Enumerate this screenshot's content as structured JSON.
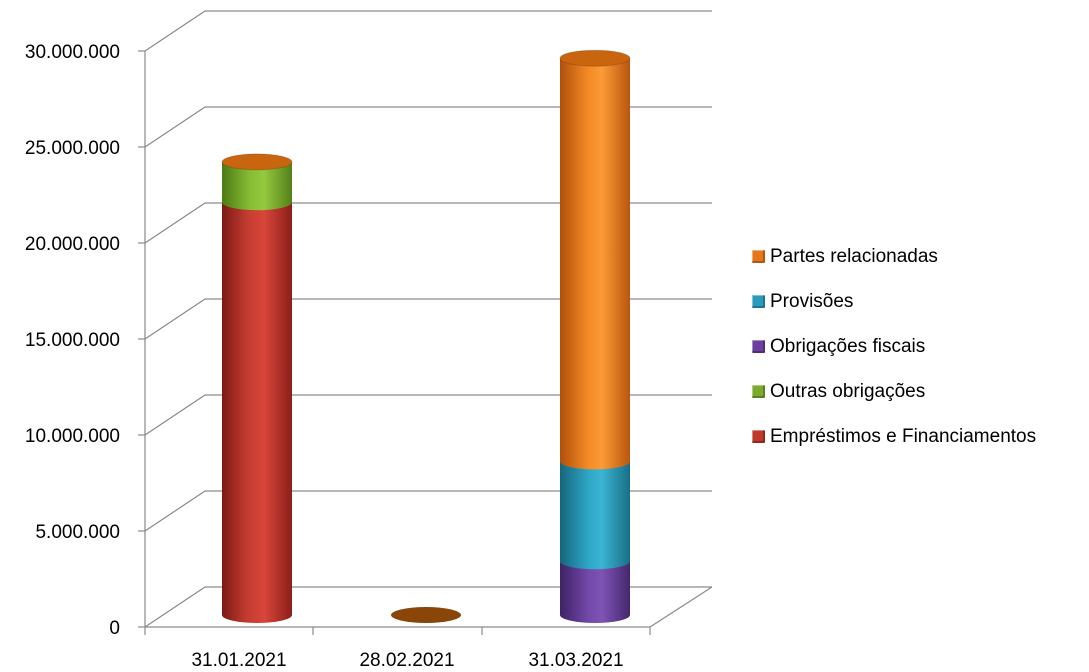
{
  "chart_data": {
    "type": "bar",
    "stacked": true,
    "style": "3d-cylinder",
    "categories": [
      "31.01.2021",
      "28.02.2021",
      "31.03.2021"
    ],
    "ylim": [
      0,
      30000000
    ],
    "yticks": [
      "0",
      "5.000.000",
      "10.000.000",
      "15.000.000",
      "20.000.000",
      "25.000.000",
      "30.000.000"
    ],
    "grid": true,
    "legend_position": "right",
    "series": [
      {
        "name": "Empréstimos e Financiamentos",
        "color": "#c0392b",
        "values": [
          21500000,
          0,
          0
        ]
      },
      {
        "name": "Outras obrigações",
        "color": "#7aab2f",
        "values": [
          2100000,
          0,
          0
        ]
      },
      {
        "name": "Obrigações fiscais",
        "color": "#6b3f9e",
        "values": [
          0,
          0,
          2800000
        ]
      },
      {
        "name": "Provisões",
        "color": "#2a9cbb",
        "values": [
          0,
          0,
          5200000
        ]
      },
      {
        "name": "Partes relacionadas",
        "color": "#e8761a",
        "values": [
          0,
          0,
          21000000
        ]
      }
    ]
  }
}
